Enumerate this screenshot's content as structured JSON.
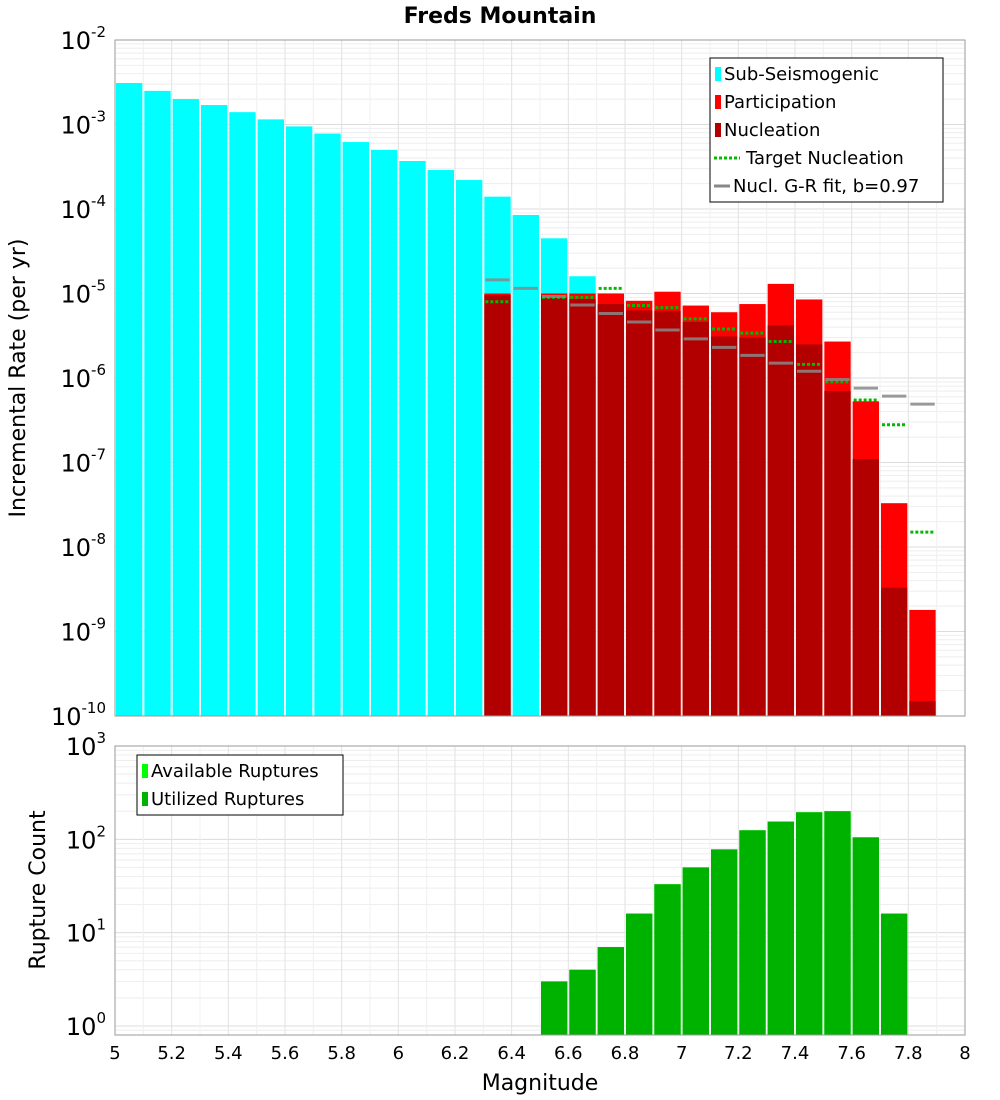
{
  "chart_data": [
    {
      "type": "bar",
      "title": "Freds Mountain",
      "xlabel": "",
      "ylabel": "Incremental Rate (per yr)",
      "yscale": "log",
      "ylim": [
        1e-10,
        0.01
      ],
      "xlim": [
        5,
        8
      ],
      "bin_width": 0.1,
      "y_ticks": [
        {
          "base": "10",
          "exp": "-10",
          "value": 1e-10
        },
        {
          "base": "10",
          "exp": "-9",
          "value": 1e-09
        },
        {
          "base": "10",
          "exp": "-8",
          "value": 1e-08
        },
        {
          "base": "10",
          "exp": "-7",
          "value": 1e-07
        },
        {
          "base": "10",
          "exp": "-6",
          "value": 1e-06
        },
        {
          "base": "10",
          "exp": "-5",
          "value": 1e-05
        },
        {
          "base": "10",
          "exp": "-4",
          "value": 0.0001
        },
        {
          "base": "10",
          "exp": "-3",
          "value": 0.001
        },
        {
          "base": "10",
          "exp": "-2",
          "value": 0.01
        }
      ],
      "series": [
        {
          "name": "Sub-Seismogenic",
          "kind": "bar",
          "color": "#00ffff",
          "x": [
            5.05,
            5.15,
            5.25,
            5.35,
            5.45,
            5.55,
            5.65,
            5.75,
            5.85,
            5.95,
            6.05,
            6.15,
            6.25,
            6.35,
            6.45,
            6.55,
            6.65
          ],
          "values": [
            0.0031,
            0.0025,
            0.002,
            0.0017,
            0.0014,
            0.00115,
            0.00095,
            0.00078,
            0.00062,
            0.0005,
            0.00037,
            0.00029,
            0.00022,
            0.00014,
            8.5e-05,
            4.5e-05,
            1.6e-05
          ]
        },
        {
          "name": "Participation",
          "kind": "bar",
          "color": "#ff0000",
          "x": [
            6.35,
            6.55,
            6.65,
            6.75,
            6.85,
            6.95,
            7.05,
            7.15,
            7.25,
            7.35,
            7.45,
            7.55,
            7.65,
            7.75,
            7.85
          ],
          "values": [
            1e-05,
            1e-05,
            1e-05,
            1e-05,
            8.2e-06,
            1.05e-05,
            7.2e-06,
            6e-06,
            7.5e-06,
            1.3e-05,
            8.5e-06,
            2.7e-06,
            5.3e-07,
            3.3e-08,
            1.8e-09
          ]
        },
        {
          "name": "Nucleation",
          "kind": "bar",
          "color": "#b20000",
          "x": [
            6.35,
            6.55,
            6.65,
            6.75,
            6.85,
            6.95,
            7.05,
            7.15,
            7.25,
            7.35,
            7.45,
            7.55,
            7.65,
            7.75,
            7.85
          ],
          "values": [
            9.6e-06,
            9.2e-06,
            8.6e-06,
            7.5e-06,
            6.3e-06,
            6.2e-06,
            4.6e-06,
            3.1e-06,
            3e-06,
            4.2e-06,
            2.5e-06,
            7e-07,
            1.1e-07,
            3.3e-09,
            1.5e-10
          ]
        },
        {
          "name": "Target Nucleation",
          "kind": "dotted-step",
          "color": "#00bb00",
          "x": [
            6.35,
            6.55,
            6.65,
            6.75,
            6.85,
            6.95,
            7.05,
            7.15,
            7.25,
            7.35,
            7.45,
            7.55,
            7.65,
            7.75,
            7.85
          ],
          "values": [
            8e-06,
            9e-06,
            9e-06,
            1.15e-05,
            7.2e-06,
            6.8e-06,
            5e-06,
            3.8e-06,
            3.4e-06,
            2.7e-06,
            1.45e-06,
            9e-07,
            5.5e-07,
            2.8e-07,
            1.5e-08
          ]
        },
        {
          "name": "Nucl. G-R fit, b=0.97",
          "kind": "step",
          "color": "#888888",
          "x": [
            6.35,
            6.45,
            6.55,
            6.65,
            6.75,
            6.85,
            6.95,
            7.05,
            7.15,
            7.25,
            7.35,
            7.45,
            7.55,
            7.65,
            7.75,
            7.85
          ],
          "values": [
            1.45e-05,
            1.15e-05,
            9.2e-06,
            7.3e-06,
            5.8e-06,
            4.6e-06,
            3.7e-06,
            2.9e-06,
            2.3e-06,
            1.85e-06,
            1.5e-06,
            1.2e-06,
            9.6e-07,
            7.6e-07,
            6.1e-07,
            4.9e-07
          ]
        }
      ],
      "legend": {
        "position": "top-right",
        "items": [
          {
            "label": "Sub-Seismogenic",
            "symbol": "bar",
            "color": "#00ffff"
          },
          {
            "label": "Participation",
            "symbol": "bar",
            "color": "#ff0000"
          },
          {
            "label": "Nucleation",
            "symbol": "bar",
            "color": "#b20000"
          },
          {
            "label": "Target Nucleation",
            "symbol": "dotted",
            "color": "#00bb00"
          },
          {
            "label": "Nucl. G-R fit, b=0.97",
            "symbol": "line",
            "color": "#888888"
          }
        ]
      }
    },
    {
      "type": "bar",
      "title": "",
      "xlabel": "Magnitude",
      "ylabel": "Rupture Count",
      "yscale": "log",
      "ylim": [
        0.8,
        1000
      ],
      "xlim": [
        5,
        8
      ],
      "bin_width": 0.1,
      "x_ticks": [
        "5",
        "5.2",
        "5.4",
        "5.6",
        "5.8",
        "6",
        "6.2",
        "6.4",
        "6.6",
        "6.8",
        "7",
        "7.2",
        "7.4",
        "7.6",
        "7.8",
        "8"
      ],
      "y_ticks": [
        {
          "base": "10",
          "exp": "0",
          "value": 1
        },
        {
          "base": "10",
          "exp": "1",
          "value": 10
        },
        {
          "base": "10",
          "exp": "2",
          "value": 100
        },
        {
          "base": "10",
          "exp": "3",
          "value": 1000
        }
      ],
      "series": [
        {
          "name": "Available Ruptures",
          "kind": "bar",
          "color": "#00ff00",
          "x": [
            6.55,
            6.65,
            6.75,
            6.85,
            6.95,
            7.05,
            7.15,
            7.25,
            7.35,
            7.45,
            7.55,
            7.65,
            7.75
          ],
          "values": [
            3,
            4,
            7,
            16,
            33,
            50,
            78,
            125,
            155,
            195,
            200,
            105,
            16
          ]
        },
        {
          "name": "Utilized Ruptures",
          "kind": "bar",
          "color": "#00b200",
          "x": [
            6.55,
            6.65,
            6.75,
            6.85,
            6.95,
            7.05,
            7.15,
            7.25,
            7.35,
            7.45,
            7.55,
            7.65,
            7.75
          ],
          "values": [
            3,
            4,
            7,
            16,
            33,
            50,
            78,
            125,
            155,
            195,
            200,
            105,
            16
          ]
        }
      ],
      "legend": {
        "position": "top-left",
        "items": [
          {
            "label": "Available Ruptures",
            "symbol": "bar",
            "color": "#00ff00"
          },
          {
            "label": "Utilized Ruptures",
            "symbol": "bar",
            "color": "#00b200"
          }
        ]
      }
    }
  ]
}
